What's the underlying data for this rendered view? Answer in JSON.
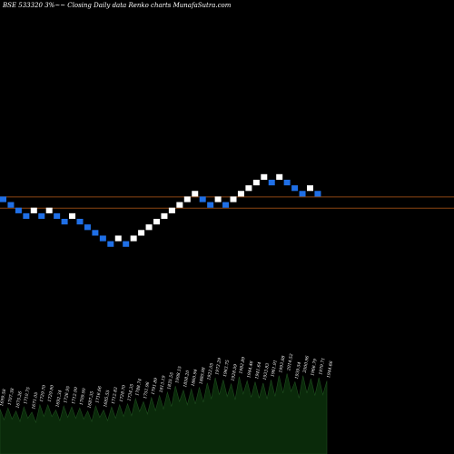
{
  "header": {
    "title": "BSE 533320  3%~~  Closing Daily data  Renko  charts MunafaSutra.com"
  },
  "colors": {
    "background": "#000000",
    "up_brick": "#ffffff",
    "down_brick": "#1f6fe6",
    "reference_line": "#8b4513",
    "volume_fill": "#0a2a0a",
    "volume_text": "#ffffff"
  },
  "chart_data": {
    "type": "renko",
    "title": "BSE 533320  3%~~  Closing Daily data  Renko  charts MunafaSutra.com",
    "brick_size_pct": 3,
    "price_levels_relative": [
      0,
      -1,
      -2,
      -3,
      -2,
      -3,
      -2,
      -3,
      -4,
      -3,
      -4,
      -5,
      -6,
      -7,
      -8,
      -7,
      -8,
      -7,
      -6,
      -5,
      -4,
      -3,
      -2,
      -1,
      0,
      1,
      0,
      -1,
      0,
      -1,
      0,
      1,
      2,
      3,
      4,
      3,
      4,
      3,
      2,
      1,
      2,
      1
    ],
    "brick_directions": [
      "down",
      "down",
      "down",
      "down",
      "up",
      "down",
      "up",
      "down",
      "down",
      "up",
      "down",
      "down",
      "down",
      "down",
      "down",
      "up",
      "down",
      "up",
      "up",
      "up",
      "up",
      "up",
      "up",
      "up",
      "up",
      "up",
      "down",
      "down",
      "up",
      "down",
      "up",
      "up",
      "up",
      "up",
      "up",
      "down",
      "up",
      "down",
      "down",
      "down",
      "up",
      "down"
    ],
    "reference_lines_relative": [
      0.5,
      -1.5
    ],
    "volume_labels": [
      "1699.58",
      "1707.38",
      "1675.26",
      "1710.75",
      "1671.05",
      "1729.70",
      "1729.90",
      "1692.34",
      "1726.95",
      "1712.90",
      "1709.90",
      "1687.35",
      "1716.66",
      "1685.55",
      "1712.83",
      "1728.70",
      "1734.35",
      "1788.74",
      "1751.96",
      "1791.89",
      "1813.19",
      "1835.55",
      "1908.15",
      "1858.20",
      "1860.94",
      "1880.98",
      "1922.05",
      "1973.29",
      "1963.75",
      "1928.59",
      "1982.89",
      "1944.46",
      "1941.64",
      "1933.83",
      "1961.91",
      "1993.88",
      "2014.52",
      "1939.54",
      "2000.96",
      "1966.79",
      "1979.71",
      "1944.66"
    ],
    "volume_values": [
      30,
      31,
      28,
      32,
      27,
      34,
      34,
      29,
      33,
      32,
      31,
      28,
      33,
      29,
      32,
      34,
      35,
      40,
      37,
      41,
      43,
      46,
      52,
      48,
      49,
      51,
      55,
      60,
      58,
      54,
      61,
      57,
      56,
      55,
      58,
      62,
      64,
      56,
      62,
      59,
      60,
      57
    ]
  }
}
